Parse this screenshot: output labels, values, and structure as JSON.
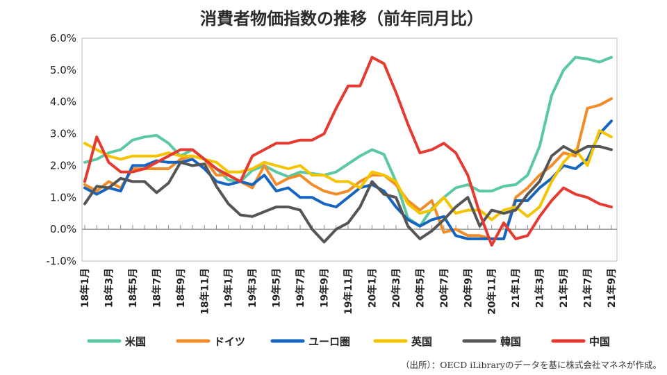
{
  "chart_data": {
    "type": "line",
    "title": "消費者物価指数の推移（前年同月比）",
    "xlabel": "",
    "ylabel": "",
    "ylim": [
      -1.0,
      6.0
    ],
    "yticks": [
      "-1.0%",
      "0.0%",
      "1.0%",
      "2.0%",
      "3.0%",
      "4.0%",
      "5.0%",
      "6.0%"
    ],
    "ytick_values": [
      -1,
      0,
      1,
      2,
      3,
      4,
      5,
      6
    ],
    "x": [
      "18/1",
      "18/2",
      "18/3",
      "18/4",
      "18/5",
      "18/6",
      "18/7",
      "18/8",
      "18/9",
      "18/10",
      "18/11",
      "18/12",
      "19/1",
      "19/2",
      "19/3",
      "19/4",
      "19/5",
      "19/6",
      "19/7",
      "19/8",
      "19/9",
      "19/10",
      "19/11",
      "19/12",
      "20/1",
      "20/2",
      "20/3",
      "20/4",
      "20/5",
      "20/6",
      "20/7",
      "20/8",
      "20/9",
      "20/10",
      "20/11",
      "20/12",
      "21/1",
      "21/2",
      "21/3",
      "21/4",
      "21/5",
      "21/6",
      "21/7",
      "21/8",
      "21/9"
    ],
    "xtick_labels": [
      "18年1月",
      "18年3月",
      "18年5月",
      "18年7月",
      "18年9月",
      "18年11月",
      "19年1月",
      "19年3月",
      "19年5月",
      "19年7月",
      "19年9月",
      "19年11月",
      "20年1月",
      "20年3月",
      "20年5月",
      "20年7月",
      "20年9月",
      "20年11月",
      "21年1月",
      "21年3月",
      "21年5月",
      "21年7月",
      "21年9月"
    ],
    "series": [
      {
        "name": "米国",
        "color": "#5ac8a0",
        "values": [
          2.1,
          2.2,
          2.4,
          2.5,
          2.8,
          2.9,
          2.95,
          2.7,
          2.3,
          2.5,
          2.2,
          1.9,
          1.55,
          1.5,
          1.85,
          2.0,
          1.8,
          1.65,
          1.8,
          1.75,
          1.7,
          1.8,
          2.05,
          2.3,
          2.5,
          2.35,
          1.5,
          0.35,
          0.1,
          0.65,
          1.0,
          1.3,
          1.4,
          1.2,
          1.2,
          1.35,
          1.4,
          1.7,
          2.6,
          4.2,
          5.0,
          5.4,
          5.35,
          5.25,
          5.4
        ]
      },
      {
        "name": "ドイツ",
        "color": "#f28c28",
        "values": [
          1.4,
          1.2,
          1.5,
          1.3,
          1.9,
          1.9,
          1.9,
          1.9,
          2.2,
          2.3,
          2.2,
          1.7,
          1.7,
          1.5,
          1.3,
          2.0,
          1.4,
          1.6,
          1.7,
          1.4,
          1.2,
          1.1,
          1.2,
          1.5,
          1.7,
          1.7,
          1.4,
          0.9,
          0.6,
          0.9,
          -0.1,
          0.0,
          -0.2,
          -0.2,
          -0.3,
          -0.3,
          1.0,
          1.3,
          1.7,
          2.0,
          2.4,
          2.3,
          3.8,
          3.9,
          4.1
        ]
      },
      {
        "name": "ユーロ圏",
        "color": "#1565c0",
        "values": [
          1.3,
          1.1,
          1.3,
          1.2,
          2.0,
          2.0,
          2.15,
          2.1,
          2.1,
          2.2,
          1.9,
          1.5,
          1.4,
          1.5,
          1.4,
          1.7,
          1.2,
          1.3,
          1.0,
          1.0,
          0.8,
          0.7,
          1.0,
          1.3,
          1.4,
          1.2,
          0.7,
          0.3,
          0.1,
          0.3,
          0.4,
          -0.2,
          -0.3,
          -0.3,
          -0.3,
          -0.3,
          0.9,
          0.9,
          1.3,
          1.6,
          2.0,
          1.9,
          2.2,
          3.0,
          3.4
        ]
      },
      {
        "name": "英国",
        "color": "#f5c400",
        "values": [
          2.7,
          2.5,
          2.3,
          2.2,
          2.3,
          2.3,
          2.3,
          2.4,
          2.3,
          2.3,
          2.2,
          2.1,
          1.8,
          1.8,
          1.9,
          2.1,
          2.0,
          1.9,
          2.0,
          1.7,
          1.7,
          1.5,
          1.5,
          1.3,
          1.8,
          1.7,
          1.5,
          0.8,
          0.5,
          0.6,
          1.0,
          0.5,
          0.6,
          0.6,
          0.3,
          0.6,
          0.7,
          0.4,
          0.7,
          1.5,
          2.1,
          2.5,
          2.0,
          3.1,
          2.9
        ]
      },
      {
        "name": "韓国",
        "color": "#555555",
        "values": [
          0.8,
          1.35,
          1.3,
          1.6,
          1.5,
          1.5,
          1.15,
          1.45,
          2.1,
          2.0,
          2.05,
          1.35,
          0.8,
          0.45,
          0.4,
          0.55,
          0.7,
          0.7,
          0.6,
          0.0,
          -0.4,
          0.0,
          0.2,
          0.7,
          1.5,
          1.1,
          1.0,
          0.1,
          -0.3,
          -0.05,
          0.3,
          0.7,
          1.0,
          0.1,
          0.6,
          0.5,
          0.6,
          1.1,
          1.5,
          2.3,
          2.6,
          2.4,
          2.6,
          2.6,
          2.5
        ]
      },
      {
        "name": "中国",
        "color": "#e53a2f",
        "values": [
          1.5,
          2.9,
          2.1,
          1.8,
          1.8,
          1.9,
          2.1,
          2.3,
          2.5,
          2.5,
          2.2,
          1.9,
          1.7,
          1.5,
          2.3,
          2.5,
          2.7,
          2.7,
          2.8,
          2.8,
          3.0,
          3.8,
          4.5,
          4.5,
          5.4,
          5.2,
          4.3,
          3.3,
          2.4,
          2.5,
          2.7,
          2.4,
          1.7,
          0.5,
          -0.5,
          0.2,
          -0.3,
          -0.2,
          0.4,
          0.9,
          1.3,
          1.1,
          1.0,
          0.8,
          0.7
        ]
      }
    ]
  },
  "source_note": "（出所）：OECD iLibraryのデータを基に株式会社マネネが作成。"
}
